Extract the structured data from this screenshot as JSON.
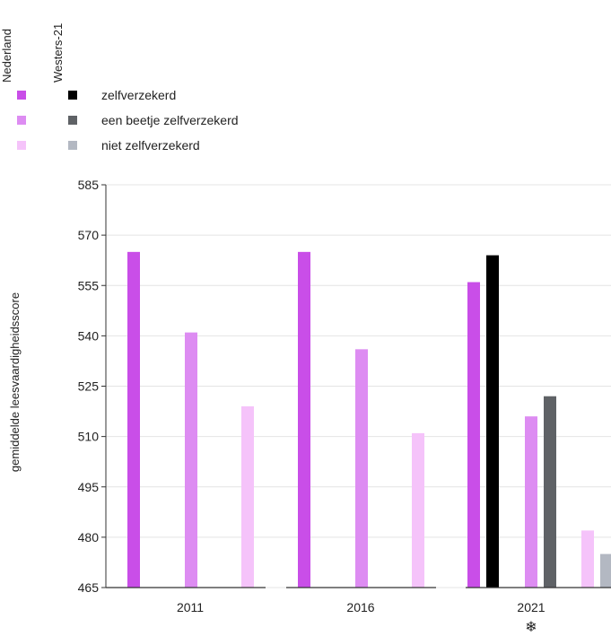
{
  "chart_data": {
    "type": "bar",
    "title": "",
    "ylabel": "gemiddelde leesvaardigheidsscore",
    "ylim": [
      465,
      585
    ],
    "yticks": [
      465,
      480,
      495,
      510,
      525,
      540,
      555,
      570,
      585
    ],
    "grid": true,
    "legend_position": "top-left",
    "legend": {
      "columns": [
        "Nederland",
        "Westers-21"
      ],
      "rows": [
        "zelfverzekerd",
        "een beetje zelfverzekerd",
        "niet zelfverzekerd"
      ]
    },
    "categories": [
      "2011",
      "2016",
      "2021"
    ],
    "category_marker": [
      "",
      "",
      "❄"
    ],
    "series": [
      {
        "name": "Nederland – zelfverzekerd",
        "color": "#c94ee8",
        "values": [
          565,
          565,
          556
        ]
      },
      {
        "name": "Westers-21 – zelfverzekerd",
        "color": "#000000",
        "values": [
          null,
          null,
          564
        ]
      },
      {
        "name": "Nederland – een beetje zelfverzekerd",
        "color": "#dd8cf2",
        "values": [
          541,
          536,
          516
        ]
      },
      {
        "name": "Westers-21 – een beetje zelfverzekerd",
        "color": "#5f6266",
        "values": [
          null,
          null,
          522
        ]
      },
      {
        "name": "Nederland – niet zelfverzekerd",
        "color": "#f5c3fa",
        "values": [
          519,
          511,
          482
        ]
      },
      {
        "name": "Westers-21 – niet zelfverzekerd",
        "color": "#b3b8c2",
        "values": [
          null,
          null,
          475
        ]
      }
    ]
  }
}
